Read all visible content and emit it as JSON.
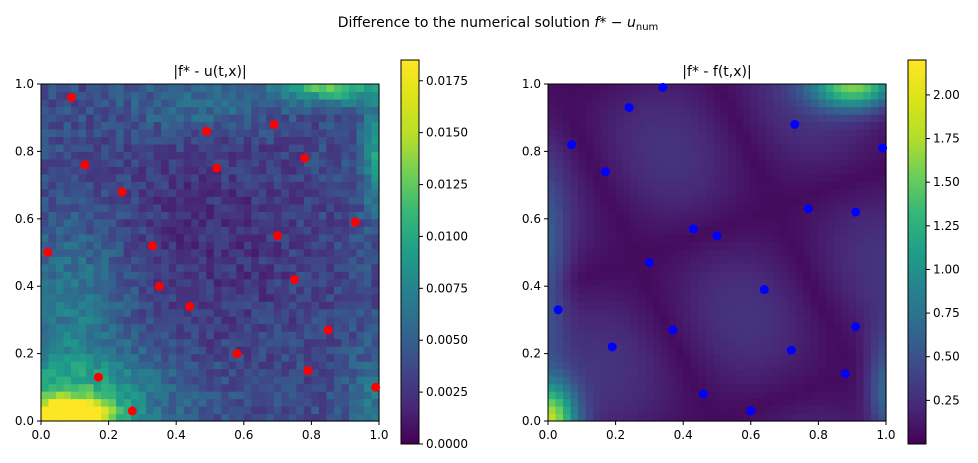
{
  "figure": {
    "suptitle_prefix": "Difference to the numerical solution ",
    "suptitle_math": "f* − u",
    "suptitle_sub": "num"
  },
  "chart_data": [
    {
      "type": "heatmap",
      "title": "|f* - u(t,x)|",
      "xlabel": "",
      "ylabel": "",
      "xlim": [
        0,
        1
      ],
      "ylim": [
        0,
        1
      ],
      "xticks": [
        "0.0",
        "0.2",
        "0.4",
        "0.6",
        "0.8",
        "1.0"
      ],
      "yticks": [
        "0.0",
        "0.2",
        "0.4",
        "0.6",
        "0.8",
        "1.0"
      ],
      "colormap": "viridis",
      "colorbar": {
        "vmin": 0,
        "vmax": 0.0185,
        "ticks": [
          0,
          0.0025,
          0.005,
          0.0075,
          0.01,
          0.0125,
          0.015,
          0.0175
        ],
        "tick_labels": [
          "0.0000",
          "0.0025",
          "0.0050",
          "0.0075",
          "0.0100",
          "0.0125",
          "0.0150",
          "0.0175"
        ]
      },
      "points_color": "#ff0000",
      "points": [
        [
          0.09,
          0.96
        ],
        [
          0.13,
          0.76
        ],
        [
          0.24,
          0.68
        ],
        [
          0.02,
          0.5
        ],
        [
          0.33,
          0.52
        ],
        [
          0.35,
          0.4
        ],
        [
          0.44,
          0.34
        ],
        [
          0.49,
          0.86
        ],
        [
          0.52,
          0.75
        ],
        [
          0.69,
          0.88
        ],
        [
          0.78,
          0.78
        ],
        [
          0.7,
          0.55
        ],
        [
          0.93,
          0.59
        ],
        [
          0.75,
          0.42
        ],
        [
          0.58,
          0.2
        ],
        [
          0.85,
          0.27
        ],
        [
          0.79,
          0.15
        ],
        [
          0.99,
          0.1
        ],
        [
          0.17,
          0.13
        ],
        [
          0.27,
          0.03
        ]
      ]
    },
    {
      "type": "heatmap",
      "title": "|f* - f(t,x)|",
      "xlabel": "",
      "ylabel": "",
      "xlim": [
        0,
        1
      ],
      "ylim": [
        0,
        1
      ],
      "xticks": [
        "0.0",
        "0.2",
        "0.4",
        "0.6",
        "0.8",
        "1.0"
      ],
      "yticks": [
        "0.0",
        "0.2",
        "0.4",
        "0.6",
        "0.8",
        "1.0"
      ],
      "colormap": "viridis",
      "colorbar": {
        "vmin": 0,
        "vmax": 2.2,
        "ticks": [
          0.25,
          0.5,
          0.75,
          1.0,
          1.25,
          1.5,
          1.75,
          2.0
        ],
        "tick_labels": [
          "0.25",
          "0.50",
          "0.75",
          "1.00",
          "1.25",
          "1.50",
          "1.75",
          "2.00"
        ]
      },
      "points_color": "#0000ff",
      "points": [
        [
          0.34,
          0.99
        ],
        [
          0.24,
          0.93
        ],
        [
          0.07,
          0.82
        ],
        [
          0.17,
          0.74
        ],
        [
          0.73,
          0.88
        ],
        [
          0.99,
          0.81
        ],
        [
          0.77,
          0.63
        ],
        [
          0.91,
          0.62
        ],
        [
          0.43,
          0.57
        ],
        [
          0.5,
          0.55
        ],
        [
          0.3,
          0.47
        ],
        [
          0.64,
          0.39
        ],
        [
          0.03,
          0.33
        ],
        [
          0.37,
          0.27
        ],
        [
          0.91,
          0.28
        ],
        [
          0.19,
          0.22
        ],
        [
          0.72,
          0.21
        ],
        [
          0.88,
          0.14
        ],
        [
          0.46,
          0.08
        ],
        [
          0.6,
          0.03
        ]
      ]
    }
  ]
}
